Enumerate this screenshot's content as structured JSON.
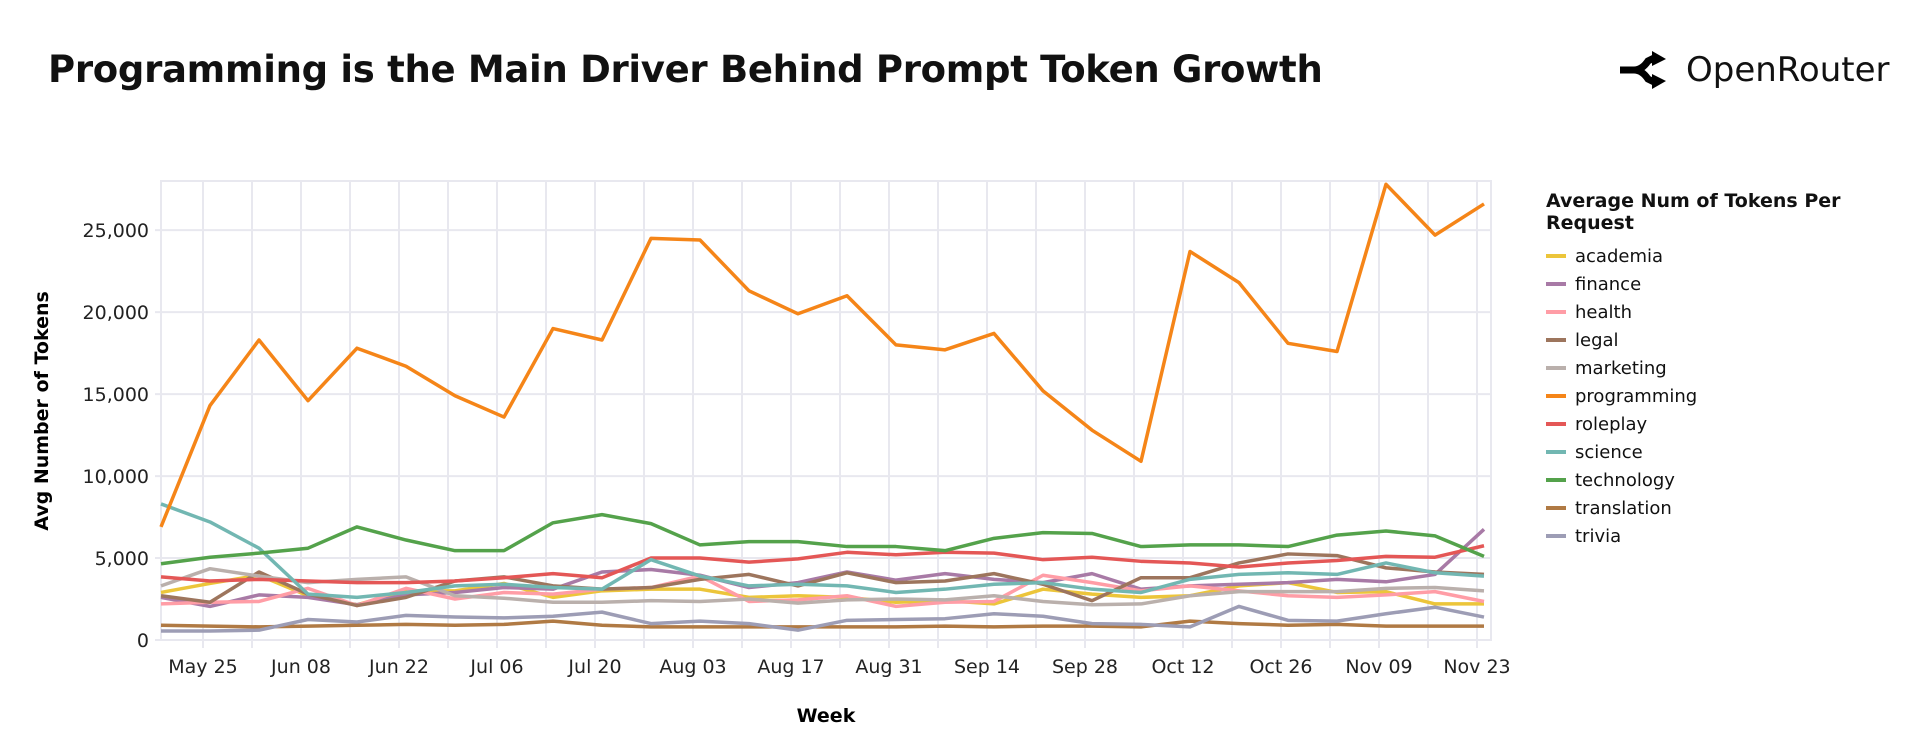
{
  "title": "Programming is the Main Driver Behind Prompt Token Growth",
  "logo": {
    "text": "OpenRouter",
    "icon": "openrouter-logo-icon"
  },
  "chart_data": {
    "type": "line",
    "xlabel": "Week",
    "ylabel": "Avg Number of Tokens",
    "ylim": [
      0,
      28000
    ],
    "yticks": [
      0,
      5000,
      10000,
      15000,
      20000,
      25000
    ],
    "ytick_labels": [
      "0",
      "5,000",
      "10,000",
      "15,000",
      "20,000",
      "25,000"
    ],
    "xtick_labels": [
      "May 25",
      "Jun 08",
      "Jun 22",
      "Jul 06",
      "Jul 20",
      "Aug 03",
      "Aug 17",
      "Aug 31",
      "Sep 14",
      "Sep 28",
      "Oct 12",
      "Oct 26",
      "Nov 09",
      "Nov 23"
    ],
    "grid": true,
    "legend_title": "Average Num of Tokens Per Request",
    "legend_placement": "right",
    "x": [
      "May 19",
      "May 26",
      "Jun 02",
      "Jun 09",
      "Jun 16",
      "Jun 23",
      "Jun 30",
      "Jul 07",
      "Jul 14",
      "Jul 21",
      "Jul 28",
      "Aug 04",
      "Aug 11",
      "Aug 18",
      "Aug 25",
      "Sep 01",
      "Sep 08",
      "Sep 15",
      "Sep 22",
      "Sep 29",
      "Oct 06",
      "Oct 13",
      "Oct 20",
      "Oct 27",
      "Nov 03",
      "Nov 10",
      "Nov 17",
      "Nov 24"
    ],
    "series": [
      {
        "name": "academia",
        "color": "#ECC53A",
        "values": [
          2900,
          3450,
          3950,
          2700,
          2150,
          3000,
          3000,
          3450,
          2600,
          3000,
          3100,
          3100,
          2600,
          2700,
          2600,
          2300,
          2400,
          2200,
          3100,
          2800,
          2600,
          2700,
          3300,
          3500,
          2900,
          2950,
          2200,
          2200
        ]
      },
      {
        "name": "finance",
        "color": "#A87AA6",
        "values": [
          2600,
          2050,
          2750,
          2600,
          2150,
          2750,
          2900,
          3200,
          3100,
          4150,
          4300,
          3950,
          3200,
          3500,
          4150,
          3650,
          4050,
          3700,
          3500,
          4050,
          3100,
          3300,
          3400,
          3500,
          3700,
          3550,
          4000,
          6750
        ]
      },
      {
        "name": "health",
        "color": "#FF9DA6",
        "values": [
          2200,
          2300,
          2350,
          3150,
          2100,
          3150,
          2500,
          2900,
          2800,
          3100,
          3200,
          3900,
          2350,
          2450,
          2700,
          2050,
          2300,
          2350,
          3950,
          3500,
          3000,
          3300,
          3000,
          2700,
          2600,
          2750,
          2950,
          2350
        ]
      },
      {
        "name": "legal",
        "color": "#9D755D",
        "values": [
          2700,
          2300,
          4150,
          2800,
          2100,
          2600,
          3600,
          3850,
          3300,
          3100,
          3200,
          3700,
          4000,
          3300,
          4100,
          3500,
          3600,
          4050,
          3400,
          2400,
          3800,
          3800,
          4700,
          5250,
          5150,
          4400,
          4150,
          4000
        ]
      },
      {
        "name": "marketing",
        "color": "#BAB0AC",
        "values": [
          3300,
          4350,
          3900,
          3500,
          3700,
          3850,
          2700,
          2550,
          2300,
          2300,
          2400,
          2350,
          2500,
          2250,
          2450,
          2500,
          2450,
          2700,
          2350,
          2150,
          2200,
          2700,
          2950,
          2950,
          2950,
          3150,
          3200,
          3000
        ]
      },
      {
        "name": "programming",
        "color": "#F58518",
        "values": [
          6900,
          14300,
          18300,
          14600,
          17800,
          16700,
          14900,
          13600,
          19000,
          18300,
          24500,
          24400,
          21300,
          19900,
          21000,
          18000,
          17700,
          18700,
          15200,
          12800,
          10900,
          23700,
          21800,
          18100,
          17600,
          27800,
          24700,
          26600
        ]
      },
      {
        "name": "roleplay",
        "color": "#E45756",
        "values": [
          3850,
          3600,
          3700,
          3600,
          3500,
          3500,
          3600,
          3800,
          4050,
          3800,
          5000,
          5000,
          4750,
          4950,
          5350,
          5200,
          5350,
          5300,
          4900,
          5050,
          4800,
          4700,
          4450,
          4700,
          4850,
          5100,
          5050,
          5750
        ]
      },
      {
        "name": "science",
        "color": "#72B7B2",
        "values": [
          8300,
          7200,
          5600,
          2800,
          2600,
          2900,
          3300,
          3400,
          3200,
          3100,
          4900,
          3900,
          3300,
          3400,
          3300,
          2900,
          3100,
          3400,
          3500,
          3100,
          2900,
          3700,
          4000,
          4100,
          4000,
          4700,
          4100,
          3900
        ]
      },
      {
        "name": "technology",
        "color": "#54A24B",
        "values": [
          4650,
          5050,
          5300,
          5600,
          6900,
          6100,
          5450,
          5450,
          7150,
          7650,
          7100,
          5800,
          6000,
          6000,
          5700,
          5700,
          5450,
          6200,
          6550,
          6500,
          5700,
          5800,
          5800,
          5700,
          6400,
          6650,
          6350,
          5100
        ]
      },
      {
        "name": "translation",
        "color": "#B07A44",
        "values": [
          900,
          850,
          800,
          850,
          900,
          950,
          900,
          950,
          1150,
          900,
          800,
          800,
          800,
          800,
          800,
          800,
          850,
          800,
          850,
          850,
          800,
          1150,
          1000,
          900,
          950,
          850,
          850,
          850
        ]
      },
      {
        "name": "trivia",
        "color": "#9D9DB5",
        "values": [
          550,
          550,
          600,
          1250,
          1100,
          1500,
          1400,
          1350,
          1450,
          1700,
          1000,
          1150,
          1000,
          600,
          1200,
          1250,
          1300,
          1600,
          1450,
          1000,
          950,
          800,
          2050,
          1200,
          1150,
          1600,
          2000,
          1400
        ]
      }
    ]
  }
}
